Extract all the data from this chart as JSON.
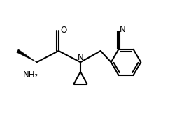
{
  "bg_color": "#ffffff",
  "line_color": "#000000",
  "line_width": 1.5,
  "font_size": 8.5,
  "figsize": [
    2.5,
    1.88
  ],
  "dpi": 100,
  "atoms": {
    "N_label": "N",
    "O_label": "O",
    "NH2_label": "NH₂",
    "CN_N_label": "N"
  },
  "xlim": [
    0,
    10
  ],
  "ylim": [
    0,
    7.52
  ]
}
